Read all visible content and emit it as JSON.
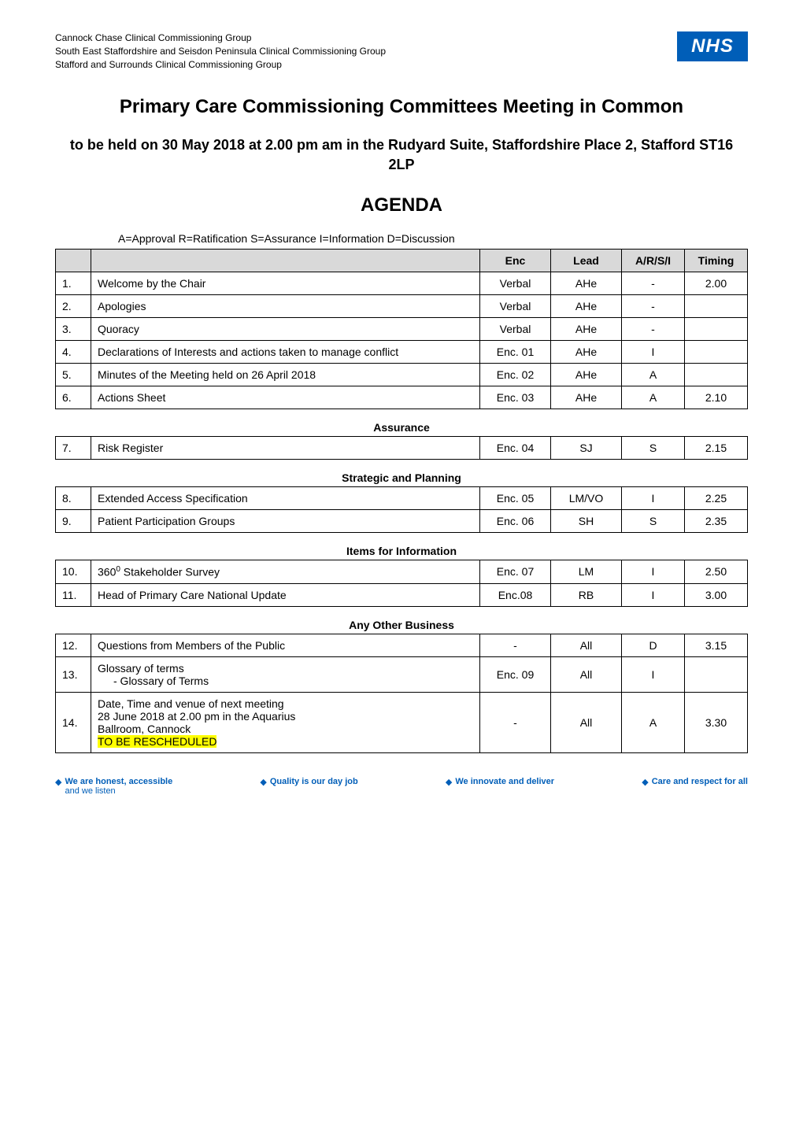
{
  "header": {
    "org_line1": "Cannock Chase Clinical Commissioning Group",
    "org_line2": "South East Staffordshire and Seisdon Peninsula Clinical Commissioning Group",
    "org_line3": "Stafford and Surrounds Clinical Commissioning Group",
    "logo_text": "NHS"
  },
  "title": "Primary Care Commissioning Committees Meeting in Common",
  "subtitle": "to be held on 30 May 2018 at 2.00 pm am in the Rudyard Suite, Staffordshire Place 2, Stafford ST16 2LP",
  "agenda_label": "AGENDA",
  "legend": "A=Approval   R=Ratification   S=Assurance   I=Information   D=Discussion",
  "columns": {
    "enc": "Enc",
    "lead": "Lead",
    "arsi": "A/R/S/I",
    "timing": "Timing"
  },
  "main_rows": [
    {
      "num": "1.",
      "item": "Welcome by the Chair",
      "enc": "Verbal",
      "lead": "AHe",
      "arsi": "-",
      "timing": "2.00"
    },
    {
      "num": "2.",
      "item": "Apologies",
      "enc": "Verbal",
      "lead": "AHe",
      "arsi": "-",
      "timing": ""
    },
    {
      "num": "3.",
      "item": "Quoracy",
      "enc": "Verbal",
      "lead": "AHe",
      "arsi": "-",
      "timing": ""
    },
    {
      "num": "4.",
      "item": "Declarations of Interests and actions taken to manage conflict",
      "enc": "Enc. 01",
      "lead": "AHe",
      "arsi": "I",
      "timing": ""
    },
    {
      "num": "5.",
      "item": "Minutes of the Meeting held on 26 April 2018",
      "enc": "Enc. 02",
      "lead": "AHe",
      "arsi": "A",
      "timing": ""
    },
    {
      "num": "6.",
      "item": "Actions Sheet",
      "enc": "Enc. 03",
      "lead": "AHe",
      "arsi": "A",
      "timing": "2.10"
    }
  ],
  "sections": [
    {
      "heading": "Assurance",
      "rows": [
        {
          "num": "7.",
          "item": "Risk Register",
          "enc": "Enc. 04",
          "lead": "SJ",
          "arsi": "S",
          "timing": "2.15"
        }
      ]
    },
    {
      "heading": "Strategic and Planning",
      "rows": [
        {
          "num": "8.",
          "item": "Extended Access Specification",
          "enc": "Enc. 05",
          "lead": "LM/VO",
          "arsi": "I",
          "timing": "2.25"
        },
        {
          "num": "9.",
          "item": "Patient Participation Groups",
          "enc": "Enc. 06",
          "lead": "SH",
          "arsi": "S",
          "timing": "2.35"
        }
      ]
    },
    {
      "heading": "Items for Information",
      "rows": [
        {
          "num": "10.",
          "item_html": "360<sup>0</sup> Stakeholder Survey",
          "enc": "Enc. 07",
          "lead": "LM",
          "arsi": "I",
          "timing": "2.50"
        },
        {
          "num": "11.",
          "item": "Head of Primary Care National Update",
          "enc": "Enc.08",
          "lead": "RB",
          "arsi": "I",
          "timing": "3.00"
        }
      ]
    },
    {
      "heading": "Any Other Business",
      "rows": [
        {
          "num": "12.",
          "item": "Questions from Members of the Public",
          "enc": "-",
          "lead": "All",
          "arsi": "D",
          "timing": "3.15"
        },
        {
          "num": "13.",
          "item_main": "Glossary of terms",
          "item_sub": "-   Glossary of Terms",
          "enc": "Enc. 09",
          "lead": "All",
          "arsi": "I",
          "timing": ""
        },
        {
          "num": "14.",
          "item_lines": [
            "Date, Time and venue of next meeting",
            "28 June 2018 at 2.00 pm in the Aquarius",
            "Ballroom, Cannock"
          ],
          "item_highlight": "TO BE RESCHEDULED",
          "enc": "-",
          "lead": "All",
          "arsi": "A",
          "timing": "3.30"
        }
      ]
    }
  ],
  "footer": {
    "items": [
      {
        "bold": "We are honest, accessible",
        "normal": "and we listen"
      },
      {
        "bold": "Quality is our day job",
        "normal": ""
      },
      {
        "bold": "We innovate and deliver",
        "normal": ""
      },
      {
        "bold": "Care and respect for all",
        "normal": ""
      }
    ]
  },
  "colors": {
    "nhs_blue": "#005eb8",
    "table_header_bg": "#d9d9d9",
    "highlight_bg": "#ffff00",
    "border": "#000000",
    "text": "#000000",
    "background": "#ffffff"
  }
}
